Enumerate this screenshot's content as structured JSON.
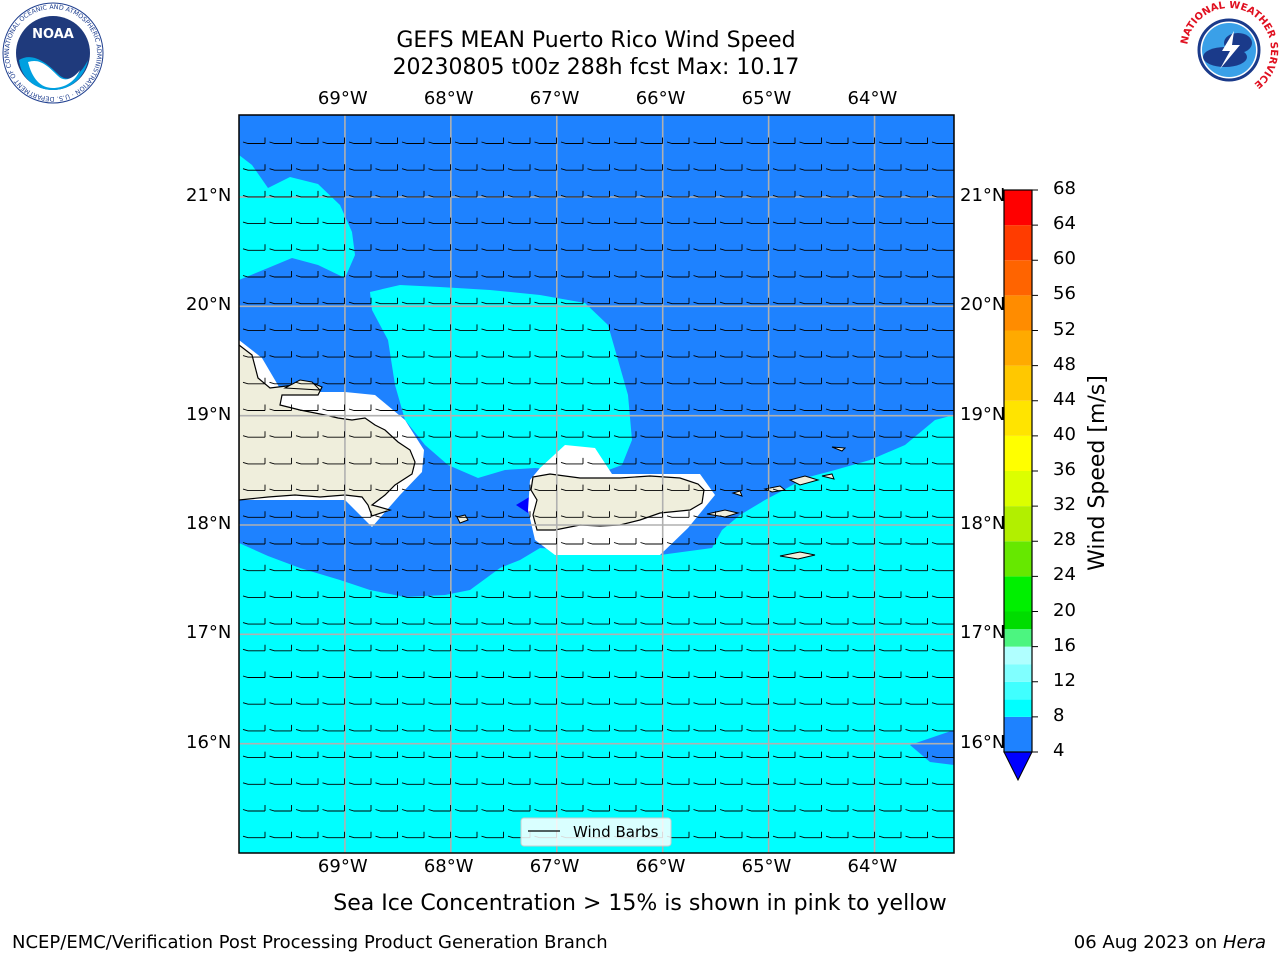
{
  "header": {
    "title_line1": "GEFS MEAN Puerto Rico Wind Speed",
    "title_line2": "20230805 t00z 288h fcst   Max: 10.17",
    "left_logo": {
      "text": "NOAA",
      "ring_text": "NATIONAL OCEANIC AND ATMOSPHERIC ADMINISTRATION · U.S. DEPARTMENT OF COMMERCE"
    },
    "right_logo": {
      "ring_text": "NATIONAL WEATHER SERVICE"
    }
  },
  "map": {
    "lon_labels": [
      "69°W",
      "68°W",
      "67°W",
      "66°W",
      "65°W",
      "64°W"
    ],
    "lat_labels": [
      "21°N",
      "20°N",
      "19°N",
      "18°N",
      "17°N",
      "16°N"
    ],
    "lon_range": [
      -70.0,
      -63.25
    ],
    "lat_range": [
      15.0,
      21.75
    ],
    "lon_ticks": [
      -69,
      -68,
      -67,
      -66,
      -65,
      -64
    ],
    "lat_ticks": [
      21,
      20,
      19,
      18,
      17,
      16
    ],
    "grid": true,
    "legend": {
      "label": "Wind Barbs",
      "placement": "bottom-center"
    },
    "wind_barbs": {
      "direction": "easterly",
      "typical_speed_ms": 8
    }
  },
  "colorbar": {
    "title": "Wind Speed [m/s]",
    "ticks": [
      "68",
      "64",
      "60",
      "56",
      "52",
      "48",
      "44",
      "40",
      "36",
      "32",
      "28",
      "24",
      "20",
      "16",
      "12",
      "8",
      "4"
    ],
    "levels": [
      4,
      8,
      10,
      12,
      14,
      16,
      18,
      20,
      24,
      28,
      32,
      36,
      40,
      44,
      48,
      52,
      56,
      60,
      64,
      68
    ],
    "colors": [
      "#1e82ff",
      "#00ffff",
      "#40ffff",
      "#80ffff",
      "#b0ffff",
      "#4cf580",
      "#00dd00",
      "#00f000",
      "#66e800",
      "#b2ef00",
      "#dcff00",
      "#ffff00",
      "#ffe400",
      "#ffc800",
      "#ffaa00",
      "#ff8c00",
      "#ff6400",
      "#ff3c00",
      "#ff0000"
    ],
    "under_color": "#0000ff"
  },
  "note": "Sea Ice Concentration > 15% is shown in pink to yellow",
  "footer": {
    "left": "NCEP/EMC/Verification Post Processing Product Generation Branch",
    "right_date": "06 Aug 2023 on ",
    "right_machine": "Hera"
  },
  "colors": {
    "fill_4_8": "#1e82ff",
    "fill_8_10": "#00ffff",
    "land": "#efeedc",
    "grid": "#b0b0b0"
  }
}
